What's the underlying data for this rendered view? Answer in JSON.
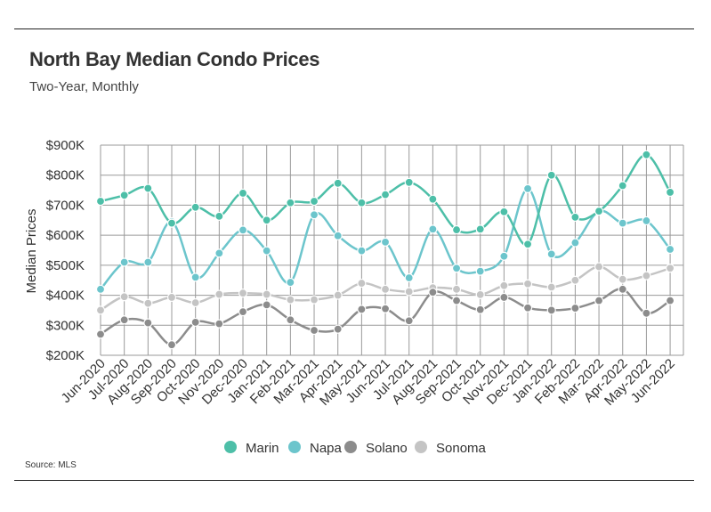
{
  "header": {
    "title": "North Bay Median Condo Prices",
    "subtitle": "Two-Year, Monthly"
  },
  "footer": {
    "source": "Source: MLS"
  },
  "chart_data": {
    "type": "line",
    "title": "North Bay Median Condo Prices",
    "subtitle": "Two-Year, Monthly",
    "xlabel": "",
    "ylabel": "Median Prices",
    "ylim": [
      200000,
      900000
    ],
    "yticks": [
      200000,
      300000,
      400000,
      500000,
      600000,
      700000,
      800000,
      900000
    ],
    "ytick_labels": [
      "$200K",
      "$300K",
      "$400K",
      "$500K",
      "$600K",
      "$700K",
      "$800K",
      "$900K"
    ],
    "grid": true,
    "legend_position": "bottom-center",
    "x": [
      "Jun-2020",
      "Jul-2020",
      "Aug-2020",
      "Sep-2020",
      "Oct-2020",
      "Nov-2020",
      "Dec-2020",
      "Jan-2021",
      "Feb-2021",
      "Mar-2021",
      "Apr-2021",
      "May-2021",
      "Jun-2021",
      "Jul-2021",
      "Aug-2021",
      "Sep-2021",
      "Oct-2021",
      "Nov-2021",
      "Dec-2021",
      "Jan-2022",
      "Feb-2022",
      "Mar-2022",
      "Apr-2022",
      "May-2022",
      "Jun-2022"
    ],
    "series": [
      {
        "name": "Marin",
        "color": "#4dbfa8",
        "values": [
          713000,
          733000,
          756000,
          640000,
          693000,
          663000,
          740000,
          650000,
          708000,
          713000,
          773000,
          708000,
          735000,
          776000,
          720000,
          618000,
          620000,
          678000,
          570000,
          800000,
          660000,
          680000,
          765000,
          868000,
          743000
        ]
      },
      {
        "name": "Napa",
        "color": "#6cc5cc",
        "values": [
          420000,
          510000,
          510000,
          645000,
          460000,
          540000,
          617000,
          548000,
          443000,
          668000,
          598000,
          548000,
          577000,
          458000,
          620000,
          490000,
          480000,
          530000,
          755000,
          537000,
          575000,
          680000,
          640000,
          648000,
          553000
        ]
      },
      {
        "name": "Solano",
        "color": "#8c8c8c",
        "values": [
          270000,
          318000,
          308000,
          235000,
          310000,
          305000,
          345000,
          368000,
          318000,
          283000,
          287000,
          353000,
          355000,
          315000,
          410000,
          382000,
          352000,
          393000,
          358000,
          350000,
          357000,
          382000,
          420000,
          340000,
          382000
        ]
      },
      {
        "name": "Sonoma",
        "color": "#c4c4c4",
        "values": [
          350000,
          395000,
          373000,
          393000,
          375000,
          403000,
          407000,
          403000,
          385000,
          385000,
          400000,
          440000,
          420000,
          412000,
          425000,
          420000,
          402000,
          432000,
          438000,
          427000,
          450000,
          495000,
          453000,
          465000,
          490000
        ]
      }
    ]
  }
}
